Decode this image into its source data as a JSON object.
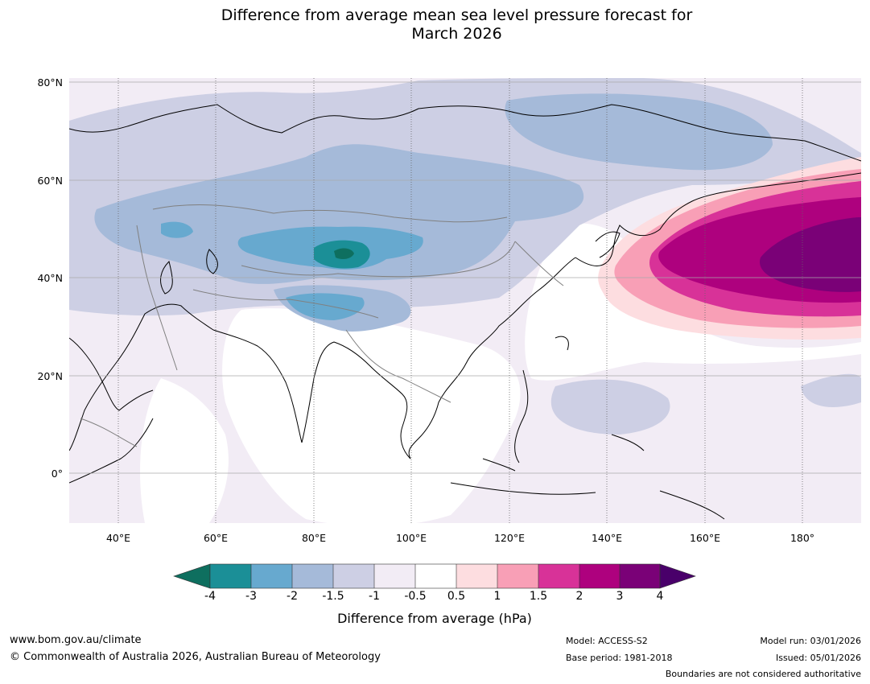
{
  "title": {
    "line1": "Difference from average mean sea level pressure forecast for",
    "line2": "March 2026"
  },
  "axes": {
    "lat_labels": [
      "80°N",
      "60°N",
      "40°N",
      "20°N",
      "0°"
    ],
    "lon_labels": [
      "40°E",
      "60°E",
      "80°E",
      "100°E",
      "120°E",
      "140°E",
      "160°E",
      "180°"
    ]
  },
  "map_extent": {
    "lon_min": 30,
    "lon_max": 192,
    "lat_min": -10,
    "lat_max": 81
  },
  "colorbar": {
    "ticks": [
      "-4",
      "-3",
      "-2",
      "-1.5",
      "-1",
      "-0.5",
      "0.5",
      "1",
      "1.5",
      "2",
      "3",
      "4"
    ],
    "title": "Difference from average (hPa)",
    "colors": {
      "below_-4": "#0e6f5f",
      "-4_-3": "#1b8f97",
      "-3_-2": "#67a9cf",
      "-2_-1.5": "#a5bad9",
      "-1.5_-1": "#cdcfe4",
      "-1_-0.5": "#f2ecf5",
      "-0.5_0.5": "#ffffff",
      "0.5_1": "#fddde0",
      "1_1.5": "#f89fb6",
      "1.5_2": "#d83298",
      "2_3": "#ae017e",
      "3_4": "#7a0177",
      "above_4": "#49006a"
    }
  },
  "footer": {
    "url": "www.bom.gov.au/climate",
    "copyright": "© Commonwealth of Australia 2026, Australian Bureau of Meteorology",
    "model": "Model: ACCESS-S2",
    "base_period": "Base period: 1981-2018",
    "model_run": "Model run: 03/01/2026",
    "issued": "Issued: 05/01/2026",
    "disclaimer": "Boundaries are not considered authoritative"
  }
}
